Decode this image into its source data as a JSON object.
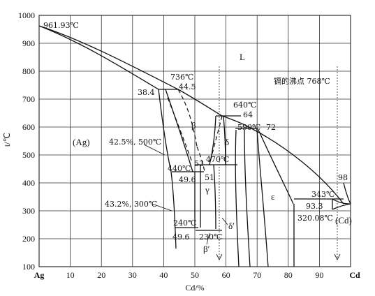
{
  "axes": {
    "x_title": "Cd/%",
    "y_title": "t/℃",
    "x_left_label": "Ag",
    "x_right_label": "Cd",
    "x_ticks": [
      "10",
      "20",
      "30",
      "40",
      "50",
      "60",
      "70",
      "80",
      "90"
    ],
    "y_ticks": [
      "1000",
      "900",
      "800",
      "700",
      "600",
      "500",
      "400",
      "300",
      "200",
      "100"
    ]
  },
  "phases": {
    "L": "L",
    "Ag": "(Ag)",
    "beta": "β",
    "delta": "δ",
    "gamma": "γ",
    "epsilon": "ε",
    "delta_prime": "δ′",
    "beta_prime": "β′",
    "Cd": "(Cd)"
  },
  "annotations": {
    "ag_melt": "961.93℃",
    "t736": "736℃",
    "c445": "44.5",
    "c384": "38.4",
    "t640": "640℃",
    "c64": "64",
    "t590": "590℃",
    "c72": "72",
    "boil": "镉的沸点 768℃",
    "c425": "42.5%, 500℃",
    "t470": "470℃",
    "t440": "440℃",
    "c53": "53",
    "c496": "49.6",
    "c51": "51",
    "c432": "43.2%, 300℃",
    "t240": "240℃",
    "c496b": "49.6",
    "t230": "230℃",
    "t343": "343℃",
    "c98": "98",
    "c933": "93.3",
    "t320": "320.08℃"
  }
}
